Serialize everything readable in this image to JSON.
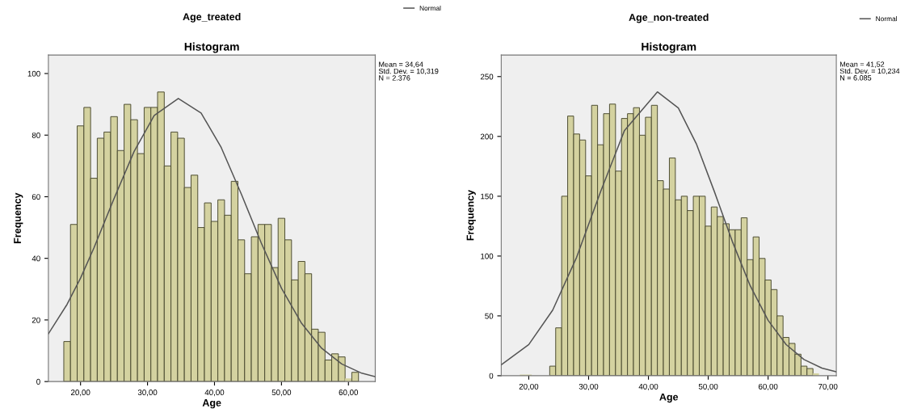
{
  "chart_data": [
    {
      "type": "histogram",
      "title": "Age_treated",
      "subtitle": "Histogram",
      "xlabel": "Age",
      "ylabel": "Frequency",
      "bins": [
        17.5,
        18.5,
        19.5,
        20.5,
        21.5,
        22.5,
        23.5,
        24.5,
        25.5,
        26.5,
        27.5,
        28.5,
        29.5,
        30.5,
        31.5,
        32.5,
        33.5,
        34.5,
        35.5,
        36.5,
        37.5,
        38.5,
        39.5,
        40.5,
        41.5,
        42.5,
        43.5,
        44.5,
        45.5,
        46.5,
        47.5,
        48.5,
        49.5,
        50.5,
        51.5,
        52.5,
        53.5,
        54.5,
        55.5,
        56.5,
        57.5,
        58.5,
        59.5,
        60.5,
        61.5
      ],
      "series": [
        {
          "color": "#d4d2a0",
          "values": [
            13,
            51,
            83,
            89,
            66,
            79,
            81,
            86,
            75,
            90,
            85,
            74,
            89,
            89,
            94,
            70,
            81,
            79,
            63,
            67,
            50,
            58,
            52,
            59,
            54,
            65,
            46,
            35,
            47,
            51,
            51,
            37,
            53,
            46,
            33,
            39,
            35,
            17,
            16,
            7,
            9,
            8,
            1,
            3
          ]
        },
        {
          "type": "line",
          "name": "Normal",
          "color": "#555555",
          "x": [
            15.2,
            18,
            20,
            22,
            25,
            28,
            31,
            34.6,
            38,
            41,
            44,
            47,
            50,
            53,
            56,
            59,
            62,
            64
          ],
          "values": [
            15.5,
            25.1,
            33.6,
            43.4,
            59.4,
            74.7,
            86.4,
            91.9,
            87.2,
            76.0,
            60.9,
            44.9,
            30.3,
            18.9,
            10.8,
            5.7,
            2.7,
            1.6
          ]
        }
      ],
      "xlim": [
        15.2,
        64
      ],
      "ylim": [
        0,
        106
      ],
      "xticks": [
        {
          "value": 20,
          "label": "20,00"
        },
        {
          "value": 30,
          "label": "30,00"
        },
        {
          "value": 40,
          "label": "40,00"
        },
        {
          "value": 50,
          "label": "50,00"
        },
        {
          "value": 60,
          "label": "60,00"
        }
      ],
      "yticks": [
        0,
        20,
        40,
        60,
        80,
        100
      ],
      "annotations": [
        "Mean = 34,64\nStd. Dev. = 10,319\nN = 2.376"
      ],
      "legend": "top right",
      "grid": false
    },
    {
      "type": "histogram",
      "title": "Age_non-treated",
      "subtitle": "Histogram",
      "xlabel": "Age",
      "ylabel": "Frequency",
      "bins": [
        18.5,
        19.5,
        20.5,
        21.5,
        22.5,
        23.5,
        24.5,
        25.5,
        26.5,
        27.5,
        28.5,
        29.5,
        30.5,
        31.5,
        32.5,
        33.5,
        34.5,
        35.5,
        36.5,
        37.5,
        38.5,
        39.5,
        40.5,
        41.5,
        42.5,
        43.5,
        44.5,
        45.5,
        46.5,
        47.5,
        48.5,
        49.5,
        50.5,
        51.5,
        52.5,
        53.5,
        54.5,
        55.5,
        56.5,
        57.5,
        58.5,
        59.5,
        60.5,
        61.5,
        62.5,
        63.5,
        64.5,
        65.5,
        66.5,
        67.5,
        68.5
      ],
      "series": [
        {
          "color": "#d4d2a0",
          "values": [
            1,
            1,
            0,
            0,
            0,
            8,
            40,
            150,
            217,
            202,
            197,
            167,
            226,
            193,
            219,
            227,
            171,
            215,
            219,
            224,
            201,
            216,
            226,
            163,
            156,
            182,
            147,
            150,
            138,
            150,
            150,
            125,
            141,
            133,
            127,
            122,
            122,
            132,
            97,
            116,
            98,
            80,
            72,
            50,
            32,
            27,
            18,
            8,
            6,
            2
          ]
        },
        {
          "type": "line",
          "name": "Normal",
          "color": "#555555",
          "x": [
            15.4,
            20,
            24,
            28,
            32,
            36,
            41.5,
            45,
            48,
            51,
            54,
            57,
            60,
            63,
            66,
            69,
            71.4
          ],
          "values": [
            9.1,
            26.0,
            54.8,
            99.0,
            153.8,
            205.0,
            237.2,
            223.8,
            193.9,
            154.2,
            112.5,
            75.3,
            46.3,
            26.1,
            13.5,
            6.4,
            3.3
          ]
        }
      ],
      "xlim": [
        15.4,
        71.4
      ],
      "ylim": [
        0,
        268
      ],
      "xticks": [
        {
          "value": 20,
          "label": "20,00"
        },
        {
          "value": 30,
          "label": "30,00"
        },
        {
          "value": 40,
          "label": "40,00"
        },
        {
          "value": 50,
          "label": "50,00"
        },
        {
          "value": 60,
          "label": "60,00"
        },
        {
          "value": 70,
          "label": "70,00"
        }
      ],
      "yticks": [
        0,
        50,
        100,
        150,
        200,
        250
      ],
      "annotations": [
        "Mean = 41,52\nStd. Dev. = 10,234\nN = 6.085"
      ],
      "legend": "top right",
      "grid": false
    }
  ]
}
